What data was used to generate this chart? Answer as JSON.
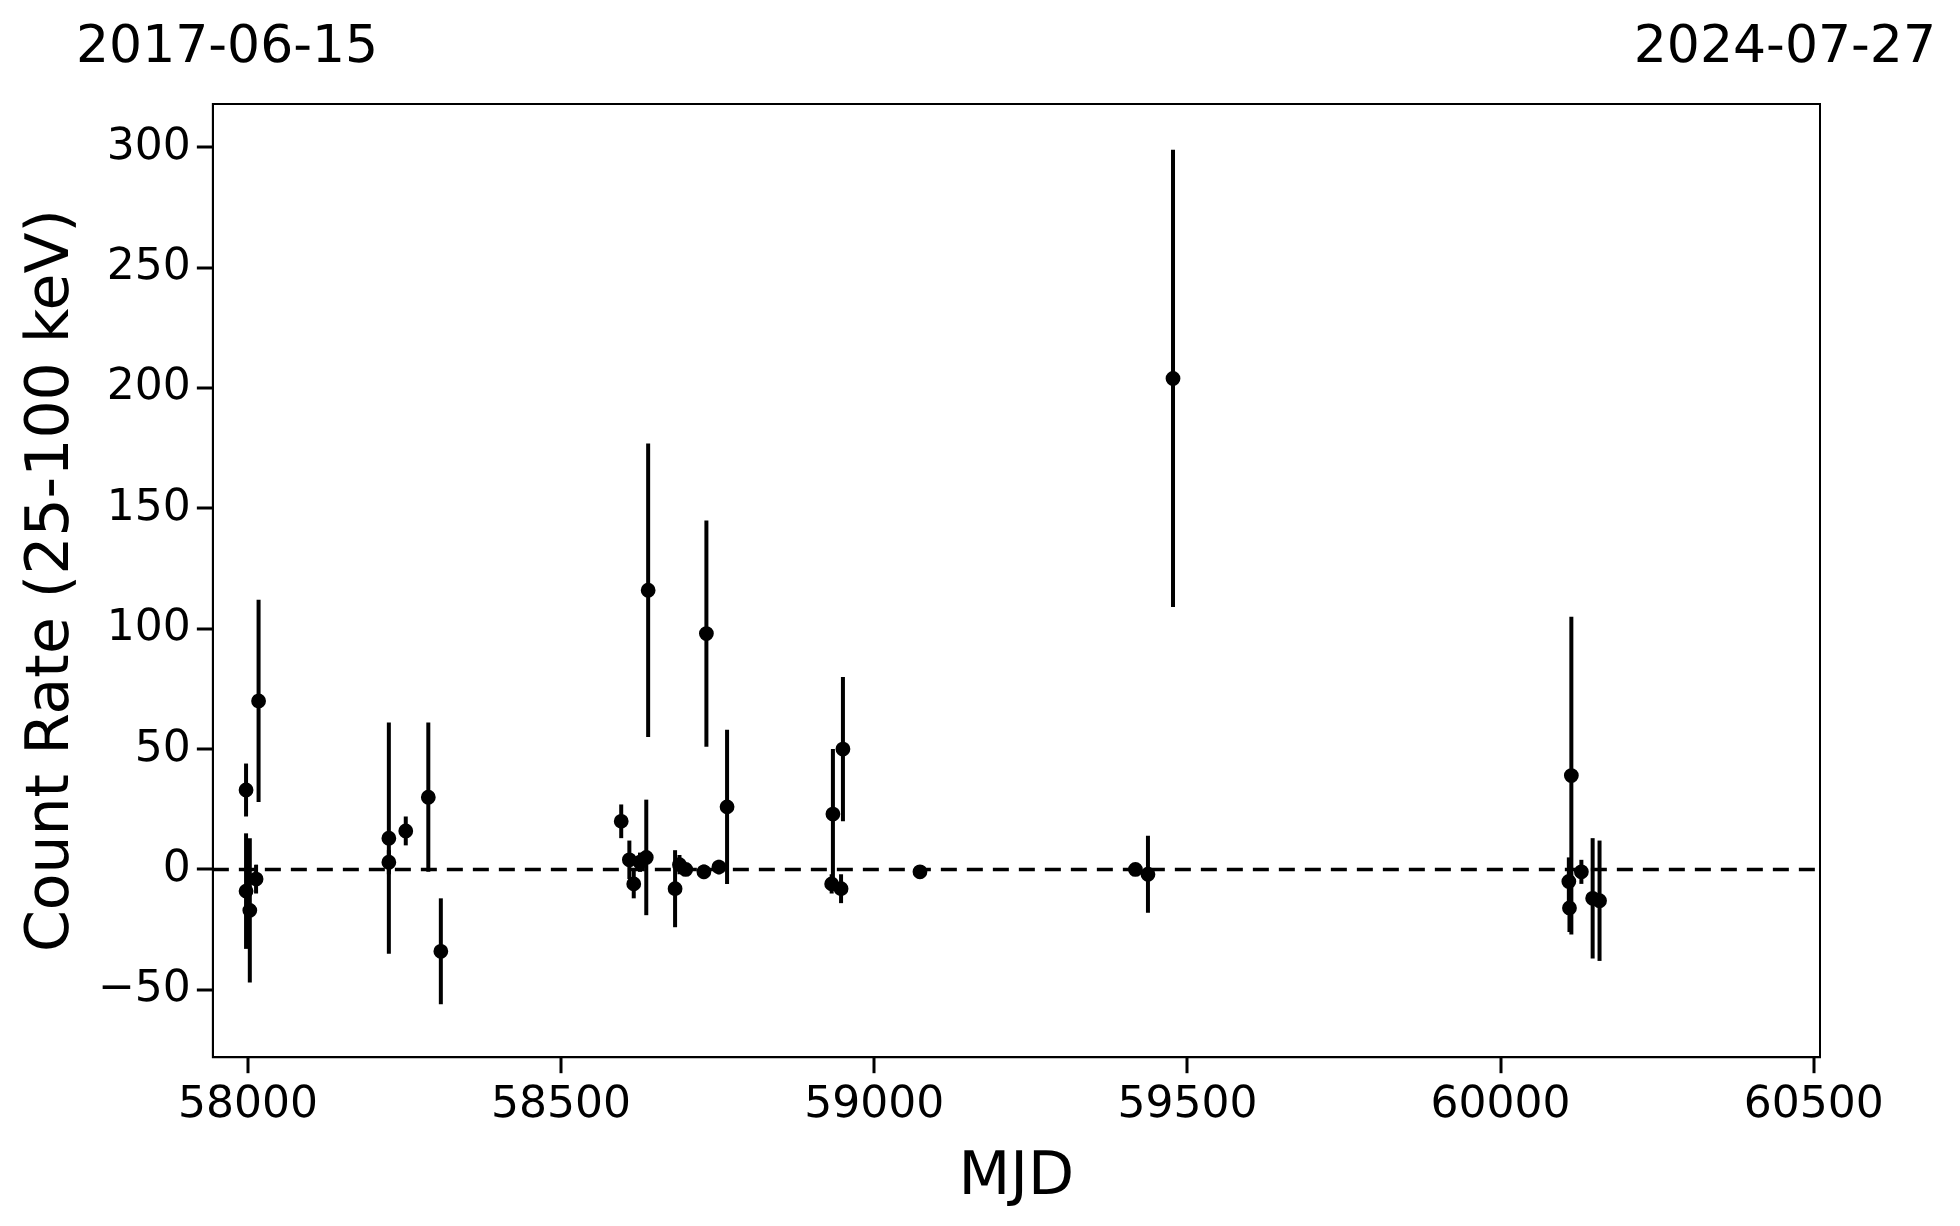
{
  "chart_data": {
    "type": "scatter",
    "xlabel": "MJD",
    "ylabel": "Count Rate (25-100 keV)",
    "x": [
      57997,
      57997,
      58003,
      58013,
      58017,
      58225,
      58225,
      58252,
      58288,
      58308,
      58596,
      58609,
      58616,
      58626,
      58639,
      58636,
      58682,
      58689,
      58699,
      58732,
      58728,
      58752,
      58765,
      58934,
      58950,
      58932,
      58947,
      59073,
      59417,
      59437,
      59477,
      60113,
      60109,
      60110,
      60129,
      60147,
      60158
    ],
    "series": [
      {
        "color": "#000000",
        "values": [
          33,
          -9,
          -17,
          -4,
          70,
          13,
          3,
          16,
          30,
          -34,
          20,
          4,
          -6,
          3,
          116,
          5,
          -8,
          2,
          0,
          98,
          -1,
          1,
          26,
          23,
          50,
          -6,
          -8,
          -1,
          0,
          -2,
          204,
          39,
          -5,
          -16,
          -1,
          -12,
          -13
        ],
        "errors": [
          11,
          24,
          30,
          6,
          42,
          48,
          5,
          6,
          31,
          22,
          7,
          8,
          6,
          4,
          61,
          24,
          16,
          4,
          2,
          47,
          3,
          3,
          32,
          27,
          30,
          4,
          6,
          1,
          1,
          16,
          95,
          66,
          10,
          10,
          5,
          25,
          25
        ]
      }
    ],
    "xlim": [
      57944,
      60510
    ],
    "xticks": [
      58000,
      58500,
      59000,
      59500,
      60000,
      60500
    ],
    "annotations": [
      "2017-06-15",
      "2024-07-27"
    ],
    "ylim": [
      -78,
      318
    ],
    "yticks": [
      -50,
      0,
      50,
      100,
      150,
      200,
      250,
      300
    ],
    "ref_lines": [
      {
        "axis": "y",
        "value": 0,
        "color": "#000000",
        "line_style": "dashed"
      }
    ],
    "marker": "circle",
    "legend": false,
    "grid": false
  }
}
